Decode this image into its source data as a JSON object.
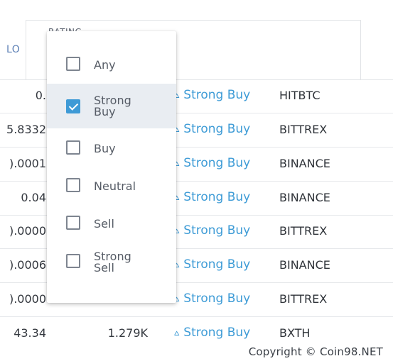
{
  "header": {
    "low_col_label": "LO",
    "rating_col_label": "RATING"
  },
  "rows": [
    {
      "low": "0.",
      "volume": "",
      "rating": "Strong Buy",
      "exchange": "HITBTC"
    },
    {
      "low": "5.8332",
      "volume": "",
      "rating": "Strong Buy",
      "exchange": "BITTREX"
    },
    {
      "low": ").0001",
      "volume": "",
      "rating": "Strong Buy",
      "exchange": "BINANCE"
    },
    {
      "low": "0.04",
      "volume": "",
      "rating": "Strong Buy",
      "exchange": "BINANCE"
    },
    {
      "low": ").0000",
      "volume": "",
      "rating": "Strong Buy",
      "exchange": "BITTREX"
    },
    {
      "low": ").0006",
      "volume": "",
      "rating": "Strong Buy",
      "exchange": "BINANCE"
    },
    {
      "low": ").0000",
      "volume": "",
      "rating": "Strong Buy",
      "exchange": "BITTREX"
    },
    {
      "low": "43.34",
      "volume": "1.279K",
      "rating": "Strong Buy",
      "exchange": "BXTH"
    }
  ],
  "rating_icon": "double-chevron-up-icon",
  "rating_filter": {
    "options": [
      {
        "line1": "Any",
        "line2": "",
        "checked": false
      },
      {
        "line1": "Strong",
        "line2": "Buy",
        "checked": true
      },
      {
        "line1": "Buy",
        "line2": "",
        "checked": false
      },
      {
        "line1": "Neutral",
        "line2": "",
        "checked": false
      },
      {
        "line1": "Sell",
        "line2": "",
        "checked": false
      },
      {
        "line1": "Strong",
        "line2": "Sell",
        "checked": false
      }
    ]
  },
  "colors": {
    "accent": "#3d9bd6",
    "selected_bg": "#e9edf2"
  },
  "watermark": "Copyright © Coin98.NET"
}
